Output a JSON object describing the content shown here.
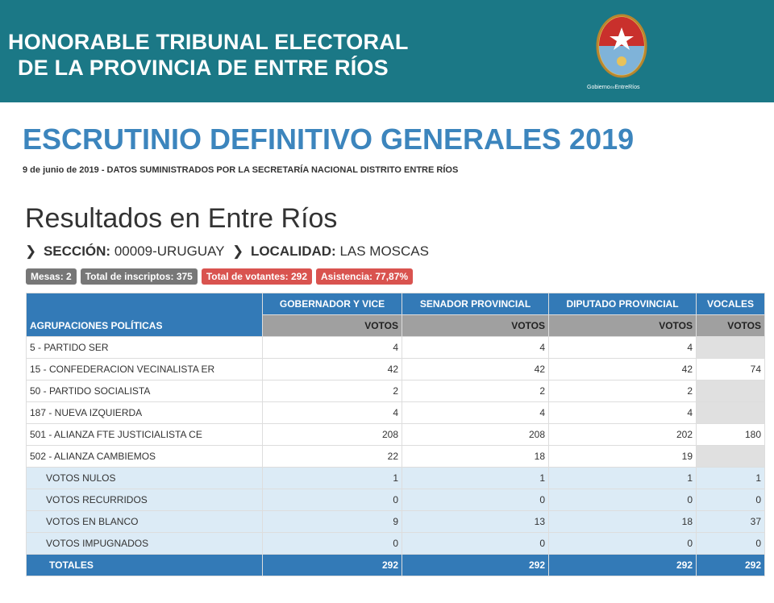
{
  "header": {
    "title_lines": [
      "HONORABLE TRIBUNAL ELECTORAL",
      "DE LA PROVINCIA DE ENTRE RÍOS"
    ],
    "logo_text": [
      "Gobierno",
      "de",
      "EntreRíos"
    ]
  },
  "page": {
    "title": "ESCRUTINIO DEFINITIVO GENERALES 2019",
    "subtitle": "9 de junio de 2019 - DATOS SUMINISTRADOS POR LA SECRETARÍA NACIONAL DISTRITO ENTRE RÍOS"
  },
  "results": {
    "title": "Resultados en Entre Ríos",
    "seccion": {
      "label": "SECCIÓN:",
      "value": "00009-URUGUAY"
    },
    "localidad": {
      "label": "LOCALIDAD:",
      "value": "LAS MOSCAS"
    },
    "badges": [
      {
        "text": "Mesas: 2",
        "color": "#777777"
      },
      {
        "text": "Total de inscriptos: 375",
        "color": "#777777"
      },
      {
        "text": "Total de votantes: 292",
        "color": "#d9534f"
      },
      {
        "text": "Asistencia: 77,87%",
        "color": "#d9534f"
      }
    ]
  },
  "table": {
    "columns": [
      "AGRUPACIONES POLÍTICAS",
      "GOBERNADOR Y VICE",
      "SENADOR PROVINCIAL",
      "DIPUTADO PROVINCIAL",
      "VOCALES"
    ],
    "subheader": "VOTOS",
    "parties": [
      [
        "5 - PARTIDO SER",
        4,
        4,
        4,
        null
      ],
      [
        "15 - CONFEDERACION VECINALISTA ER",
        42,
        42,
        42,
        74
      ],
      [
        "50 - PARTIDO SOCIALISTA",
        2,
        2,
        2,
        null
      ],
      [
        "187 - NUEVA IZQUIERDA",
        4,
        4,
        4,
        null
      ],
      [
        "501 - ALIANZA FTE JUSTICIALISTA CE",
        208,
        208,
        202,
        180
      ],
      [
        "502 - ALIANZA CAMBIEMOS",
        22,
        18,
        19,
        null
      ]
    ],
    "other_votes": [
      [
        "VOTOS NULOS",
        1,
        1,
        1,
        1
      ],
      [
        "VOTOS RECURRIDOS",
        0,
        0,
        0,
        0
      ],
      [
        "VOTOS EN BLANCO",
        9,
        13,
        18,
        37
      ],
      [
        "VOTOS IMPUGNADOS",
        0,
        0,
        0,
        0
      ]
    ],
    "totals": [
      "TOTALES",
      292,
      292,
      292,
      292
    ]
  }
}
